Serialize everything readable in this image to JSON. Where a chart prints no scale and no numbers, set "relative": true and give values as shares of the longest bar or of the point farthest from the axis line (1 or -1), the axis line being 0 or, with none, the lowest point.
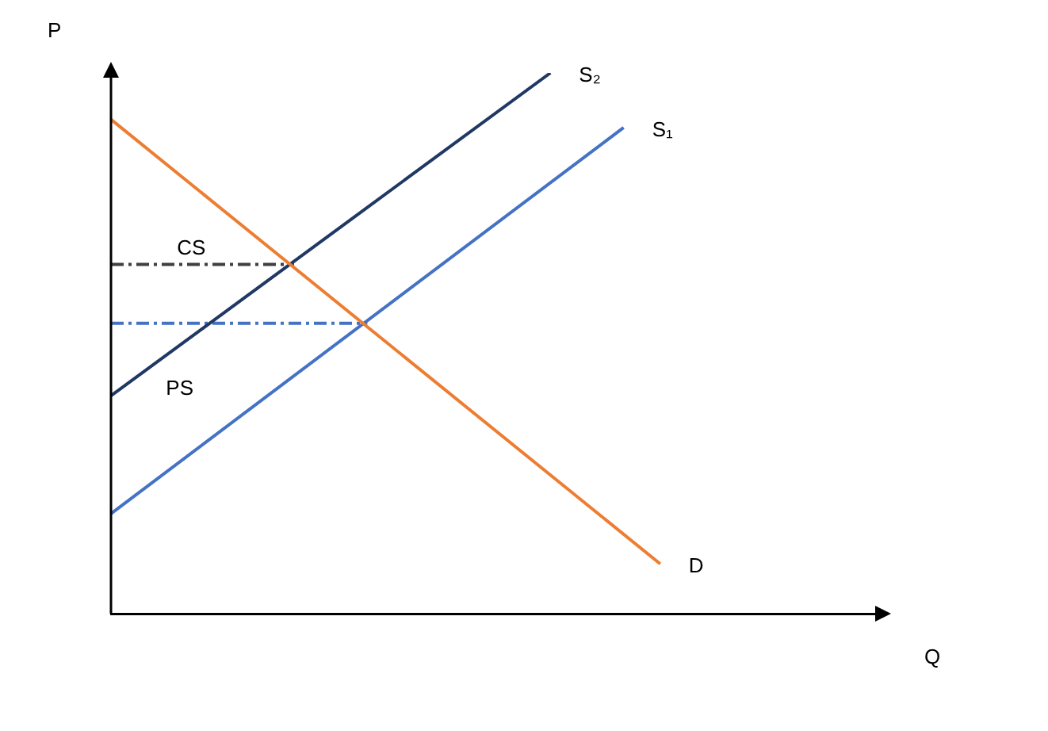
{
  "chart_data": {
    "type": "line",
    "relative": true,
    "xlabel": "Q",
    "ylabel": "P",
    "legend": false,
    "marker": "none",
    "categories": [
      null,
      null,
      null,
      null,
      null,
      null,
      null,
      null,
      null,
      null,
      null,
      null,
      null,
      null,
      null,
      null,
      null,
      null,
      null,
      null,
      null,
      null
    ],
    "series": [
      {
        "name": "D",
        "color": "#ed7d31",
        "values": [
          0.914,
          null,
          null,
          null,
          null,
          null,
          null,
          null,
          null,
          null,
          null,
          null,
          null,
          null,
          null,
          0.092,
          null,
          null,
          null,
          null,
          null,
          null
        ]
      },
      {
        "name": "S₂",
        "color": "#203864",
        "values": [
          0.403,
          null,
          null,
          null,
          null,
          null,
          null,
          null,
          null,
          null,
          null,
          null,
          1,
          null,
          null,
          null,
          null,
          null,
          null,
          null,
          null,
          null
        ]
      },
      {
        "name": "S₁",
        "color": "#4472c4",
        "values": [
          0.185,
          null,
          null,
          null,
          null,
          null,
          null,
          null,
          null,
          null,
          null,
          null,
          null,
          null,
          0.899,
          null,
          null,
          null,
          null,
          null,
          null,
          null
        ]
      },
      {
        "color": "#404040",
        "values": [
          0.646,
          null,
          null,
          null,
          null,
          0.646,
          null,
          null,
          null,
          null,
          null,
          null,
          null,
          null,
          null,
          null,
          null,
          null,
          null,
          null,
          null,
          null
        ],
        "line_style": "dashed"
      },
      {
        "color": "#4472c4",
        "values": [
          0.537,
          null,
          null,
          null,
          null,
          null,
          null,
          0.537,
          null,
          null,
          null,
          null,
          null,
          null,
          null,
          null,
          null,
          null,
          null,
          null,
          null,
          null
        ],
        "line_style": "dashed"
      }
    ],
    "annotations": [
      "CS",
      "PS"
    ]
  }
}
